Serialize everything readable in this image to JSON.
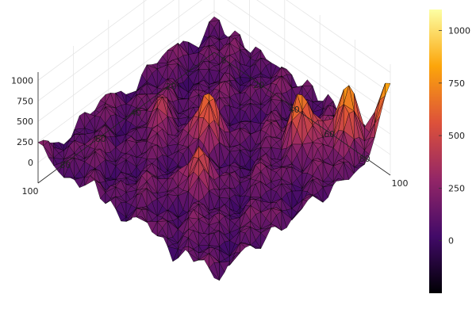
{
  "chart_data": {
    "type": "surface",
    "title": "",
    "x_axis": {
      "label": "",
      "range": [
        0,
        100
      ],
      "ticks": [
        0,
        20,
        40,
        60,
        80,
        100
      ]
    },
    "y_axis": {
      "label": "",
      "range": [
        0,
        100
      ],
      "ticks": [
        20,
        40,
        60,
        80,
        100
      ]
    },
    "z_axis": {
      "label": "",
      "range": [
        -250,
        1100
      ],
      "ticks": [
        0,
        250,
        500,
        750,
        1000
      ]
    },
    "colorbar": {
      "colormap": "inferno",
      "range": [
        -250,
        1100
      ],
      "ticks": [
        0,
        250,
        500,
        750,
        1000
      ],
      "colors": [
        "#000004",
        "#420a68",
        "#932667",
        "#dd513a",
        "#fca50a",
        "#fcffa4"
      ]
    },
    "mesh": "triangulated, black edges",
    "grid": true,
    "legend": "none",
    "peaks": [
      {
        "x": 100,
        "y": 100,
        "z": 1000
      },
      {
        "x": 88,
        "y": 88,
        "z": 900
      },
      {
        "x": 75,
        "y": 75,
        "z": 850
      },
      {
        "x": 45,
        "y": 50,
        "z": 650
      },
      {
        "x": 60,
        "y": 30,
        "z": 500
      },
      {
        "x": 25,
        "y": 45,
        "z": 450
      }
    ]
  }
}
